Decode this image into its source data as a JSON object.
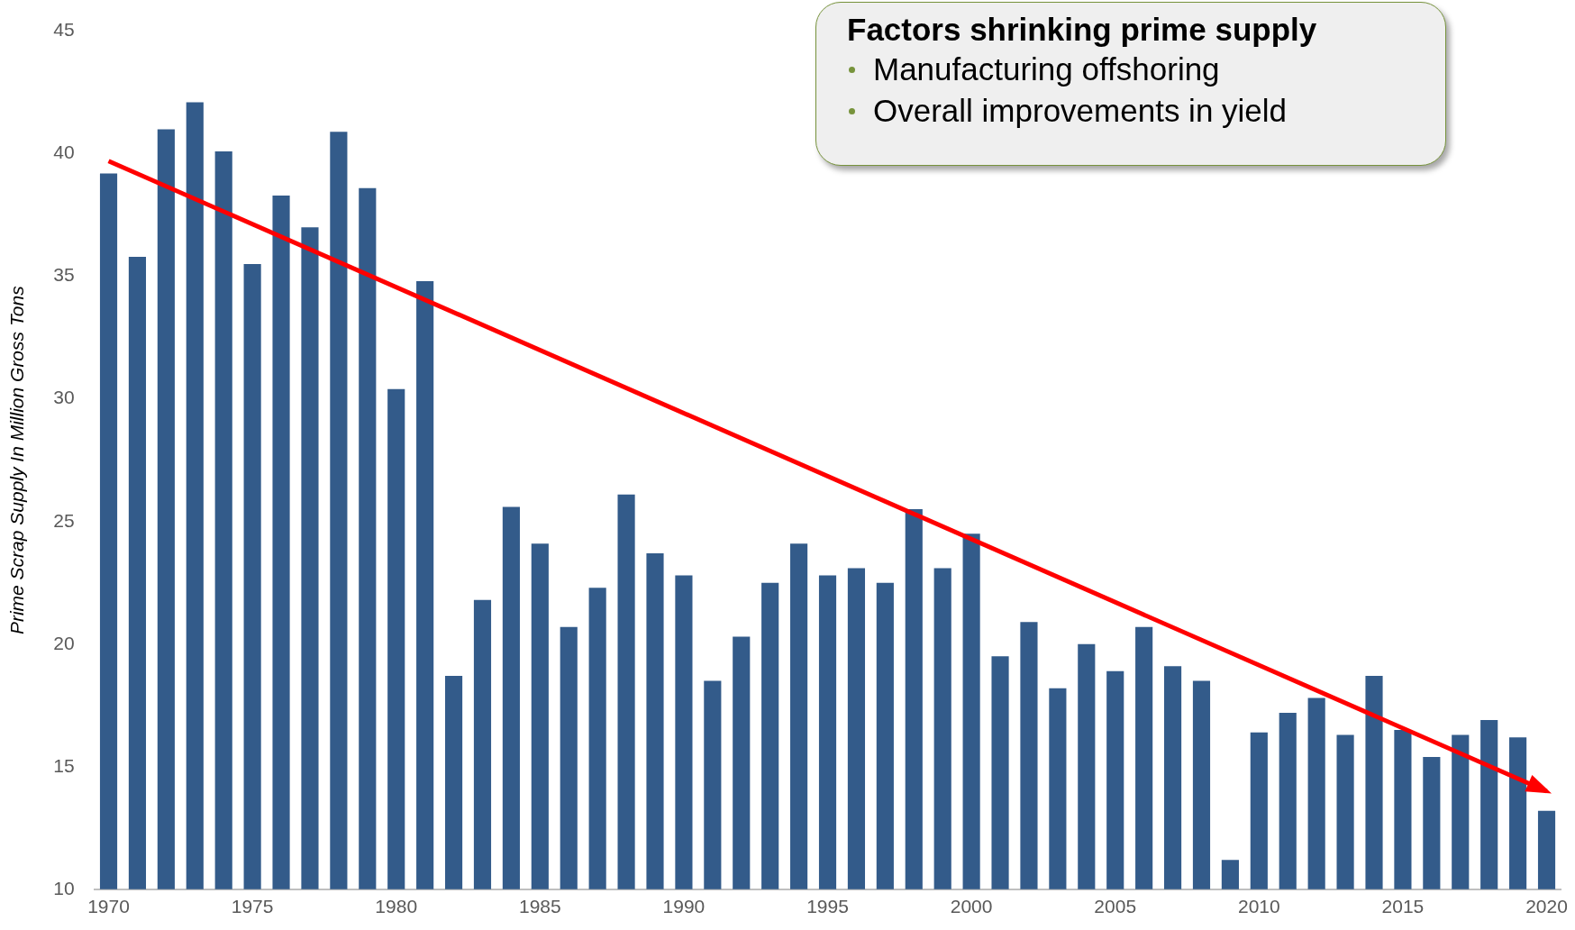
{
  "chart_data": {
    "type": "bar",
    "ylabel": "Prime Scrap Supply In Million Gross Tons",
    "categories": [
      "1970",
      null,
      null,
      null,
      null,
      "1975",
      null,
      null,
      null,
      null,
      "1980",
      null,
      null,
      null,
      null,
      "1985",
      null,
      null,
      null,
      null,
      "1990",
      null,
      null,
      null,
      null,
      "1995",
      null,
      null,
      null,
      null,
      "2000",
      null,
      null,
      null,
      null,
      "2005",
      null,
      null,
      null,
      null,
      "2010",
      null,
      null,
      null,
      null,
      "2015",
      null,
      null,
      null,
      null,
      "2020"
    ],
    "series": [
      {
        "color": "#335b8a",
        "values": [
          39.2,
          35.8,
          41.0,
          42.1,
          40.1,
          35.5,
          38.3,
          37.0,
          40.9,
          38.6,
          30.4,
          34.8,
          18.7,
          21.8,
          25.6,
          24.1,
          20.7,
          22.3,
          26.1,
          23.7,
          22.8,
          18.5,
          20.3,
          22.5,
          24.1,
          22.8,
          23.1,
          22.5,
          25.5,
          23.1,
          24.5,
          19.5,
          20.9,
          18.2,
          20.0,
          18.9,
          20.7,
          19.1,
          18.5,
          11.2,
          16.4,
          17.2,
          17.8,
          16.3,
          18.7,
          16.5,
          15.4,
          16.3,
          16.9,
          16.2,
          13.2
        ]
      },
      {
        "type": "line",
        "color": "#ff0000",
        "values": [
          39.7,
          null,
          null,
          null,
          null,
          null,
          null,
          null,
          null,
          null,
          null,
          null,
          null,
          null,
          null,
          null,
          null,
          null,
          null,
          null,
          null,
          null,
          null,
          null,
          null,
          null,
          null,
          null,
          null,
          null,
          null,
          null,
          null,
          null,
          null,
          null,
          null,
          null,
          null,
          null,
          null,
          null,
          null,
          null,
          null,
          null,
          null,
          null,
          null,
          null,
          14.0
        ]
      }
    ],
    "ylim": [
      10,
      45
    ],
    "yticks": [
      10,
      15,
      20,
      25,
      30,
      35,
      40,
      45
    ],
    "grid": false,
    "legend": false,
    "annotations": [
      "Factors shrinking prime supply",
      "Manufacturing offshoring",
      "Overall improvements in yield"
    ]
  }
}
